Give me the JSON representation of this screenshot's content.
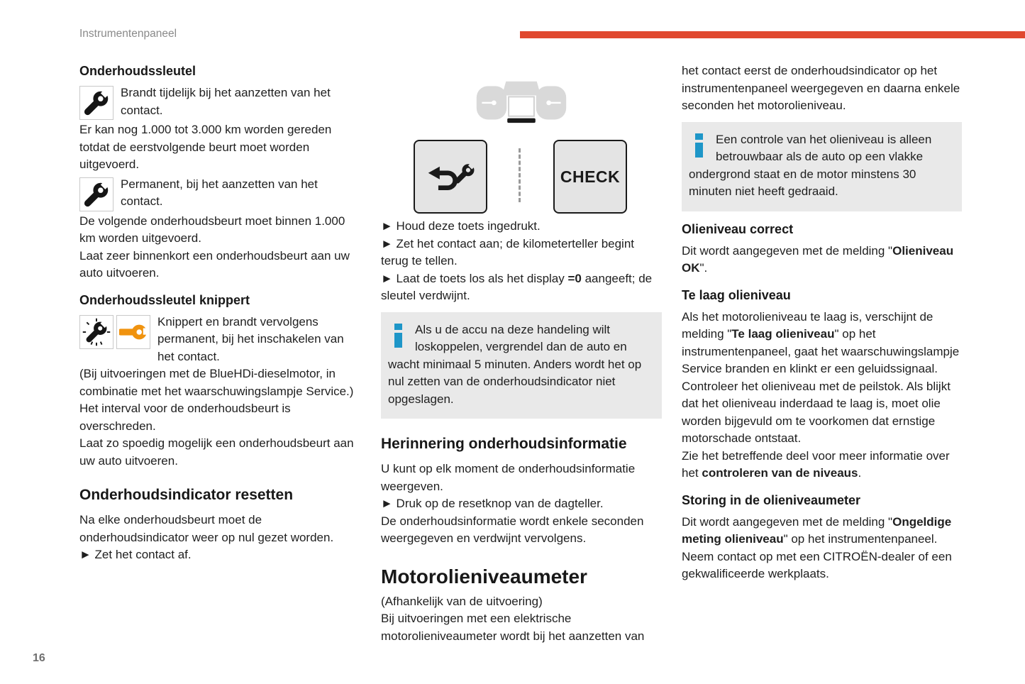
{
  "header": {
    "title": "Instrumentenpaneel"
  },
  "footer": {
    "page_number": "16"
  },
  "colors": {
    "accent_red": "#e0482f",
    "info_blue": "#1e96c8",
    "wrench_orange": "#f0930f",
    "icon_black": "#151515",
    "infobox_gray": "#e9e9e9",
    "button_gray": "#e4e4e4",
    "cluster_gray": "#d9d9d9"
  },
  "icons": {
    "wrench-icon": "black open-end wrench glyph (svg)",
    "wrench-blinking-icon": "black wrench with radiating blink dashes (svg)",
    "orange-wrench-icon": "orange horizontal wrench glyph (svg)",
    "return-arrow-icon": "U-turn back arrow glyph (svg)",
    "small-wrench-icon": "small wrench glyph on button (svg)",
    "info-icon": "blue letter-i block glyph",
    "instrument-cluster-illustration": "gray gauge cluster with white display and black highlighted bar",
    "bullet": "►"
  },
  "col1": {
    "s1_title": "Onderhoudssleutel",
    "s1_icon_text": "Brandt tijdelijk bij het aanzetten van het contact.",
    "s1_p1": "Er kan nog 1.000 tot 3.000 km worden gereden totdat de eerstvolgende beurt moet worden uitgevoerd.",
    "s2_icon_text": "Permanent, bij het aanzetten van het contact.",
    "s2_p1": "De volgende onderhoudsbeurt moet binnen 1.000 km worden uitgevoerd.",
    "s2_p2": "Laat zeer binnenkort een onderhoudsbeurt aan uw auto uitvoeren.",
    "s3_title": "Onderhoudssleutel knippert",
    "s3_icon_text": "Knippert en brandt vervolgens permanent, bij het inschakelen van het contact.",
    "s3_p1": "(Bij uitvoeringen met de BlueHDi-dieselmotor, in combinatie met het waarschuwingslampje Service.)",
    "s3_p2": "Het interval voor de onderhoudsbeurt is overschreden.",
    "s3_p3": "Laat zo spoedig mogelijk een onderhoudsbeurt aan uw auto uitvoeren.",
    "s4_title": "Onderhoudsindicator resetten",
    "s4_p1": "Na elke onderhoudsbeurt moet de onderhoudsindicator weer op nul gezet worden.",
    "s4_b1": "► Zet het contact af."
  },
  "col2": {
    "check_label": "CHECK",
    "b1": "► Houd deze toets ingedrukt.",
    "b2": "► Zet het contact aan; de kilometerteller begint terug te tellen.",
    "b3": [
      {
        "t": "► Laat de toets los als het display ",
        "b": false
      },
      {
        "t": "=0",
        "b": true
      },
      {
        "t": " aangeeft; de sleutel verdwijnt.",
        "b": false
      }
    ],
    "info_text": "Als u de accu na deze handeling wilt loskoppelen, vergrendel dan de auto en wacht minimaal 5 minuten. Anders wordt het op nul zetten van de onderhoudsindicator niet opgeslagen.",
    "s2_title": "Herinnering onderhoudsinformatie",
    "s2_p1": "U kunt op elk moment de onderhoudsinformatie weergeven.",
    "s2_b1": "► Druk op de resetknop van de dagteller.",
    "s2_p2": "De onderhoudsinformatie wordt enkele seconden weergegeven en verdwijnt vervolgens.",
    "s3_title": "Motorolieniveaumeter",
    "s3_p1": "(Afhankelijk van de uitvoering)",
    "s3_p2": "Bij uitvoeringen met een elektrische motorolieniveaumeter wordt bij het aanzetten van"
  },
  "col3": {
    "p1": "het contact eerst de onderhoudsindicator op het instrumentenpaneel weergegeven en daarna enkele seconden het motorolieniveau.",
    "info_text": "Een controle van het olieniveau is alleen betrouwbaar als de auto op een vlakke ondergrond staat en de motor minstens 30 minuten niet heeft gedraaid.",
    "s1_title": "Olieniveau correct",
    "s1_p1": [
      {
        "t": "Dit wordt aangegeven met de melding \"",
        "b": false
      },
      {
        "t": "Olieniveau OK",
        "b": true
      },
      {
        "t": "\".",
        "b": false
      }
    ],
    "s2_title": "Te laag olieniveau",
    "s2_p1": [
      {
        "t": "Als het motorolieniveau te laag is, verschijnt de melding \"",
        "b": false
      },
      {
        "t": "Te laag olieniveau",
        "b": true
      },
      {
        "t": "\" op het instrumentenpaneel, gaat het waarschuwingslampje Service branden en klinkt er een geluidssignaal.",
        "b": false
      }
    ],
    "s2_p2": "Controleer het olieniveau met de peilstok. Als blijkt dat het olieniveau inderdaad te laag is, moet olie worden bijgevuld om te voorkomen dat ernstige motorschade ontstaat.",
    "s2_p3": [
      {
        "t": "Zie het betreffende deel voor meer informatie over het ",
        "b": false
      },
      {
        "t": "controleren van de niveaus",
        "b": true
      },
      {
        "t": ".",
        "b": false
      }
    ],
    "s3_title": "Storing in de olieniveaumeter",
    "s3_p1": [
      {
        "t": "Dit wordt aangegeven met de melding \"",
        "b": false
      },
      {
        "t": "Ongeldige meting olieniveau",
        "b": true
      },
      {
        "t": "\" op het instrumentenpaneel. Neem contact op met een CITROËN-dealer of een gekwalificeerde werkplaats.",
        "b": false
      }
    ]
  }
}
